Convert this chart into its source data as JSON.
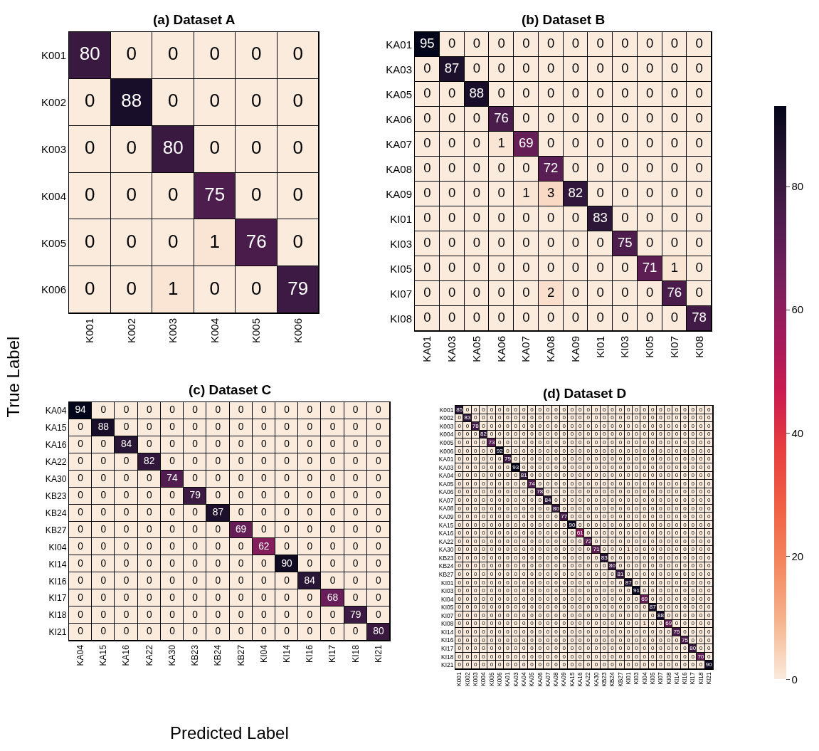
{
  "chart_data": [
    {
      "type": "heatmap",
      "title": "(a) Dataset A",
      "ylabel": "True Label",
      "data_labels": true,
      "categories": [
        "K001",
        "K002",
        "K003",
        "K004",
        "K005",
        "K006"
      ],
      "y_categories": [
        "K001",
        "K002",
        "K003",
        "K004",
        "K005",
        "K006"
      ],
      "cells": [
        [
          80,
          0,
          0,
          0,
          0,
          0
        ],
        [
          0,
          88,
          0,
          0,
          0,
          0
        ],
        [
          0,
          0,
          80,
          0,
          0,
          0
        ],
        [
          0,
          0,
          0,
          75,
          0,
          0
        ],
        [
          0,
          0,
          0,
          1,
          76,
          0
        ],
        [
          0,
          0,
          1,
          0,
          0,
          79
        ]
      ]
    },
    {
      "type": "heatmap",
      "title": "(b) Dataset B",
      "data_labels": true,
      "categories": [
        "KA01",
        "KA03",
        "KA05",
        "KA06",
        "KA07",
        "KA08",
        "KA09",
        "KI01",
        "KI03",
        "KI05",
        "KI07",
        "KI08"
      ],
      "y_categories": [
        "KA01",
        "KA03",
        "KA05",
        "KA06",
        "KA07",
        "KA08",
        "KA09",
        "KI01",
        "KI03",
        "KI05",
        "KI07",
        "KI08"
      ],
      "cells": [
        [
          95,
          0,
          0,
          0,
          0,
          0,
          0,
          0,
          0,
          0,
          0,
          0
        ],
        [
          0,
          87,
          0,
          0,
          0,
          0,
          0,
          0,
          0,
          0,
          0,
          0
        ],
        [
          0,
          0,
          88,
          0,
          0,
          0,
          0,
          0,
          0,
          0,
          0,
          0
        ],
        [
          0,
          0,
          0,
          76,
          0,
          0,
          0,
          0,
          0,
          0,
          0,
          0
        ],
        [
          0,
          0,
          0,
          1,
          69,
          0,
          0,
          0,
          0,
          0,
          0,
          0
        ],
        [
          0,
          0,
          0,
          0,
          0,
          72,
          0,
          0,
          0,
          0,
          0,
          0
        ],
        [
          0,
          0,
          0,
          0,
          1,
          3,
          82,
          0,
          0,
          0,
          0,
          0
        ],
        [
          0,
          0,
          0,
          0,
          0,
          0,
          0,
          83,
          0,
          0,
          0,
          0
        ],
        [
          0,
          0,
          0,
          0,
          0,
          0,
          0,
          0,
          75,
          0,
          0,
          0
        ],
        [
          0,
          0,
          0,
          0,
          0,
          0,
          0,
          0,
          0,
          71,
          1,
          0
        ],
        [
          0,
          0,
          0,
          0,
          0,
          2,
          0,
          0,
          0,
          0,
          76,
          0
        ],
        [
          0,
          0,
          0,
          0,
          0,
          0,
          0,
          0,
          0,
          0,
          0,
          78
        ]
      ]
    },
    {
      "type": "heatmap",
      "title": "(c) Dataset C",
      "xlabel": "Predicted Label",
      "data_labels": true,
      "categories": [
        "KA04",
        "KA15",
        "KA16",
        "KA22",
        "KA30",
        "KB23",
        "KB24",
        "KB27",
        "KI04",
        "KI14",
        "KI16",
        "KI17",
        "KI18",
        "KI21"
      ],
      "y_categories": [
        "KA04",
        "KA15",
        "KA16",
        "KA22",
        "KA30",
        "KB23",
        "KB24",
        "KB27",
        "KI04",
        "KI14",
        "KI16",
        "KI17",
        "KI18",
        "KI21"
      ],
      "cells": [
        [
          94,
          0,
          0,
          0,
          0,
          0,
          0,
          0,
          0,
          0,
          0,
          0,
          0,
          0
        ],
        [
          0,
          88,
          0,
          0,
          0,
          0,
          0,
          0,
          0,
          0,
          0,
          0,
          0,
          0
        ],
        [
          0,
          0,
          84,
          0,
          0,
          0,
          0,
          0,
          0,
          0,
          0,
          0,
          0,
          0
        ],
        [
          0,
          0,
          0,
          82,
          0,
          0,
          0,
          0,
          0,
          0,
          0,
          0,
          0,
          0
        ],
        [
          0,
          0,
          0,
          0,
          74,
          0,
          0,
          0,
          0,
          0,
          0,
          0,
          0,
          0
        ],
        [
          0,
          0,
          0,
          0,
          0,
          79,
          0,
          0,
          0,
          0,
          0,
          0,
          0,
          0
        ],
        [
          0,
          0,
          0,
          0,
          0,
          0,
          87,
          0,
          0,
          0,
          0,
          0,
          0,
          0
        ],
        [
          0,
          0,
          0,
          0,
          0,
          0,
          0,
          69,
          0,
          0,
          0,
          0,
          0,
          0
        ],
        [
          0,
          0,
          0,
          0,
          0,
          0,
          0,
          0,
          62,
          0,
          0,
          0,
          0,
          0
        ],
        [
          0,
          0,
          0,
          0,
          0,
          0,
          0,
          0,
          0,
          90,
          0,
          0,
          0,
          0
        ],
        [
          0,
          0,
          0,
          0,
          0,
          0,
          0,
          0,
          0,
          0,
          84,
          0,
          0,
          0
        ],
        [
          0,
          0,
          0,
          0,
          0,
          0,
          0,
          0,
          0,
          0,
          0,
          68,
          0,
          0
        ],
        [
          0,
          0,
          0,
          0,
          0,
          0,
          0,
          0,
          0,
          0,
          0,
          0,
          79,
          0
        ],
        [
          0,
          0,
          0,
          0,
          0,
          0,
          0,
          0,
          0,
          0,
          0,
          0,
          0,
          80
        ]
      ]
    },
    {
      "type": "heatmap",
      "title": "(d) Dataset D",
      "data_labels": true,
      "clim": [
        0,
        93
      ],
      "cticks": [
        0,
        20,
        40,
        60,
        80
      ],
      "categories": [
        "K001",
        "K002",
        "K003",
        "K004",
        "K005",
        "K006",
        "KA01",
        "KA03",
        "KA04",
        "KA05",
        "KA06",
        "KA07",
        "KA08",
        "KA09",
        "KA15",
        "KA16",
        "KA22",
        "KA30",
        "KB23",
        "KB24",
        "KB27",
        "KI01",
        "KI03",
        "KI04",
        "KI05",
        "KI07",
        "KI08",
        "KI14",
        "KI16",
        "KI17",
        "KI18",
        "KI21"
      ],
      "y_categories": [
        "K001",
        "K002",
        "K003",
        "K004",
        "K005",
        "K006",
        "KA01",
        "KA03",
        "KA04",
        "KA05",
        "KA06",
        "KA07",
        "KA08",
        "KA09",
        "KA15",
        "KA16",
        "KA22",
        "KA30",
        "KB23",
        "KB24",
        "KB27",
        "KI01",
        "KI03",
        "KI04",
        "KI05",
        "KI07",
        "KI08",
        "KI14",
        "KI16",
        "KI17",
        "KI18",
        "KI21"
      ],
      "cells": [
        [
          85,
          0,
          0,
          0,
          0,
          0,
          0,
          0,
          0,
          0,
          0,
          0,
          0,
          0,
          0,
          0,
          0,
          0,
          0,
          0,
          0,
          0,
          0,
          0,
          0,
          0,
          0,
          0,
          0,
          0,
          0,
          0
        ],
        [
          0,
          83,
          0,
          0,
          0,
          0,
          0,
          0,
          0,
          0,
          0,
          0,
          0,
          0,
          0,
          0,
          0,
          0,
          0,
          0,
          0,
          0,
          0,
          0,
          0,
          0,
          0,
          0,
          0,
          0,
          0,
          0
        ],
        [
          0,
          0,
          78,
          0,
          0,
          0,
          0,
          0,
          0,
          0,
          0,
          0,
          0,
          0,
          0,
          0,
          0,
          0,
          0,
          0,
          0,
          0,
          0,
          0,
          0,
          0,
          0,
          0,
          0,
          0,
          0,
          0
        ],
        [
          0,
          0,
          0,
          82,
          0,
          0,
          0,
          0,
          0,
          0,
          0,
          0,
          0,
          0,
          0,
          0,
          0,
          0,
          0,
          0,
          0,
          0,
          0,
          0,
          0,
          0,
          0,
          0,
          0,
          0,
          0,
          0
        ],
        [
          0,
          0,
          0,
          0,
          73,
          0,
          0,
          0,
          0,
          0,
          0,
          0,
          0,
          0,
          0,
          0,
          0,
          0,
          0,
          0,
          0,
          0,
          0,
          0,
          0,
          0,
          0,
          0,
          0,
          0,
          0,
          0
        ],
        [
          0,
          0,
          0,
          0,
          0,
          92,
          0,
          0,
          0,
          0,
          0,
          0,
          0,
          0,
          0,
          0,
          0,
          0,
          0,
          0,
          0,
          0,
          0,
          0,
          0,
          0,
          0,
          0,
          0,
          0,
          0,
          0
        ],
        [
          0,
          0,
          0,
          0,
          0,
          0,
          79,
          0,
          0,
          0,
          0,
          0,
          0,
          0,
          0,
          0,
          0,
          0,
          0,
          0,
          0,
          0,
          0,
          0,
          0,
          0,
          0,
          0,
          0,
          0,
          0,
          0
        ],
        [
          0,
          0,
          0,
          0,
          0,
          0,
          0,
          93,
          0,
          0,
          0,
          0,
          0,
          0,
          0,
          0,
          0,
          0,
          0,
          0,
          0,
          0,
          0,
          0,
          0,
          0,
          0,
          0,
          0,
          0,
          0,
          0
        ],
        [
          0,
          0,
          0,
          0,
          0,
          0,
          0,
          0,
          81,
          0,
          0,
          0,
          0,
          0,
          0,
          0,
          0,
          0,
          0,
          0,
          0,
          0,
          0,
          0,
          0,
          0,
          0,
          0,
          0,
          0,
          0,
          0
        ],
        [
          0,
          0,
          0,
          0,
          0,
          0,
          0,
          0,
          0,
          74,
          0,
          0,
          0,
          0,
          0,
          0,
          0,
          0,
          0,
          0,
          0,
          0,
          0,
          0,
          0,
          0,
          0,
          0,
          0,
          0,
          0,
          0
        ],
        [
          0,
          0,
          0,
          0,
          0,
          0,
          0,
          0,
          0,
          0,
          78,
          0,
          0,
          0,
          0,
          0,
          0,
          0,
          0,
          0,
          0,
          0,
          0,
          0,
          0,
          0,
          0,
          0,
          0,
          0,
          0,
          0
        ],
        [
          0,
          0,
          0,
          0,
          0,
          0,
          0,
          0,
          0,
          0,
          0,
          84,
          0,
          0,
          0,
          0,
          0,
          0,
          0,
          0,
          0,
          0,
          0,
          0,
          0,
          0,
          0,
          0,
          0,
          0,
          0,
          0
        ],
        [
          0,
          0,
          0,
          0,
          0,
          0,
          0,
          0,
          0,
          0,
          0,
          0,
          80,
          0,
          0,
          0,
          0,
          0,
          0,
          0,
          0,
          0,
          0,
          0,
          0,
          0,
          0,
          0,
          0,
          0,
          0,
          0
        ],
        [
          0,
          0,
          0,
          0,
          0,
          0,
          0,
          0,
          0,
          0,
          0,
          0,
          0,
          77,
          0,
          0,
          0,
          0,
          0,
          0,
          0,
          0,
          0,
          0,
          0,
          0,
          0,
          0,
          0,
          0,
          0,
          0
        ],
        [
          0,
          0,
          0,
          0,
          0,
          0,
          0,
          0,
          0,
          0,
          0,
          0,
          0,
          0,
          90,
          0,
          0,
          0,
          0,
          0,
          0,
          0,
          0,
          0,
          0,
          0,
          0,
          0,
          0,
          0,
          0,
          0
        ],
        [
          0,
          0,
          0,
          0,
          0,
          0,
          0,
          0,
          0,
          0,
          0,
          0,
          0,
          0,
          0,
          61,
          0,
          0,
          0,
          0,
          0,
          0,
          0,
          0,
          0,
          0,
          0,
          0,
          0,
          0,
          0,
          0
        ],
        [
          0,
          0,
          0,
          0,
          0,
          0,
          0,
          0,
          0,
          0,
          0,
          0,
          0,
          0,
          0,
          0,
          72,
          0,
          0,
          0,
          0,
          0,
          0,
          0,
          0,
          0,
          0,
          0,
          0,
          0,
          0,
          0
        ],
        [
          0,
          0,
          0,
          0,
          0,
          0,
          0,
          0,
          0,
          0,
          0,
          0,
          0,
          0,
          0,
          0,
          0,
          71,
          0,
          0,
          0,
          1,
          0,
          0,
          0,
          0,
          0,
          0,
          0,
          0,
          0,
          0
        ],
        [
          0,
          0,
          0,
          0,
          0,
          0,
          0,
          0,
          0,
          0,
          0,
          0,
          0,
          0,
          0,
          0,
          0,
          0,
          83,
          0,
          0,
          0,
          0,
          0,
          0,
          0,
          0,
          0,
          0,
          0,
          0,
          0
        ],
        [
          0,
          0,
          0,
          0,
          0,
          0,
          0,
          0,
          0,
          0,
          0,
          0,
          0,
          0,
          0,
          0,
          0,
          0,
          0,
          80,
          0,
          0,
          0,
          0,
          0,
          0,
          0,
          0,
          0,
          0,
          0,
          0
        ],
        [
          0,
          0,
          0,
          0,
          0,
          0,
          0,
          0,
          0,
          0,
          0,
          0,
          0,
          0,
          0,
          0,
          0,
          0,
          0,
          0,
          81,
          0,
          0,
          0,
          0,
          0,
          0,
          0,
          0,
          0,
          0,
          0
        ],
        [
          0,
          0,
          0,
          0,
          0,
          0,
          0,
          0,
          0,
          0,
          0,
          0,
          0,
          0,
          0,
          0,
          0,
          0,
          0,
          0,
          0,
          87,
          0,
          0,
          0,
          0,
          0,
          0,
          0,
          0,
          0,
          0
        ],
        [
          0,
          0,
          0,
          0,
          0,
          0,
          0,
          0,
          0,
          0,
          0,
          0,
          0,
          0,
          0,
          0,
          0,
          0,
          0,
          0,
          0,
          0,
          91,
          0,
          0,
          0,
          0,
          0,
          0,
          0,
          0,
          0
        ],
        [
          0,
          0,
          0,
          0,
          0,
          0,
          0,
          0,
          0,
          0,
          0,
          0,
          0,
          0,
          0,
          0,
          0,
          0,
          0,
          0,
          0,
          0,
          0,
          69,
          0,
          0,
          0,
          0,
          0,
          0,
          0,
          0
        ],
        [
          0,
          0,
          0,
          0,
          0,
          0,
          0,
          0,
          0,
          0,
          0,
          0,
          0,
          0,
          0,
          0,
          0,
          0,
          0,
          0,
          0,
          0,
          0,
          0,
          87,
          0,
          0,
          0,
          0,
          0,
          0,
          0
        ],
        [
          0,
          0,
          0,
          0,
          0,
          0,
          0,
          0,
          0,
          0,
          0,
          0,
          0,
          0,
          0,
          0,
          0,
          0,
          0,
          0,
          0,
          0,
          0,
          0,
          0,
          88,
          0,
          0,
          0,
          0,
          0,
          0
        ],
        [
          0,
          0,
          0,
          0,
          0,
          0,
          0,
          0,
          0,
          0,
          0,
          0,
          0,
          0,
          0,
          0,
          0,
          0,
          0,
          0,
          0,
          0,
          0,
          1,
          0,
          0,
          69,
          0,
          0,
          0,
          0,
          0
        ],
        [
          0,
          0,
          0,
          0,
          0,
          0,
          0,
          0,
          0,
          0,
          0,
          0,
          0,
          0,
          0,
          0,
          0,
          0,
          0,
          0,
          0,
          0,
          0,
          0,
          0,
          0,
          0,
          75,
          0,
          0,
          0,
          0
        ],
        [
          0,
          0,
          0,
          0,
          0,
          0,
          0,
          0,
          0,
          0,
          0,
          0,
          0,
          0,
          0,
          0,
          0,
          0,
          0,
          0,
          0,
          0,
          0,
          0,
          0,
          0,
          0,
          0,
          75,
          0,
          0,
          0
        ],
        [
          0,
          0,
          0,
          0,
          0,
          0,
          0,
          0,
          0,
          0,
          0,
          0,
          0,
          0,
          0,
          0,
          0,
          0,
          0,
          0,
          0,
          0,
          0,
          0,
          0,
          0,
          0,
          0,
          0,
          80,
          0,
          0
        ],
        [
          0,
          0,
          0,
          0,
          0,
          0,
          0,
          0,
          0,
          0,
          0,
          0,
          0,
          0,
          0,
          0,
          0,
          0,
          0,
          0,
          0,
          0,
          0,
          0,
          0,
          0,
          0,
          0,
          0,
          0,
          70,
          0
        ],
        [
          0,
          0,
          0,
          0,
          0,
          0,
          0,
          0,
          0,
          0,
          0,
          0,
          0,
          0,
          0,
          0,
          0,
          0,
          0,
          0,
          0,
          0,
          0,
          0,
          0,
          0,
          0,
          0,
          0,
          0,
          0,
          90
        ]
      ]
    }
  ]
}
